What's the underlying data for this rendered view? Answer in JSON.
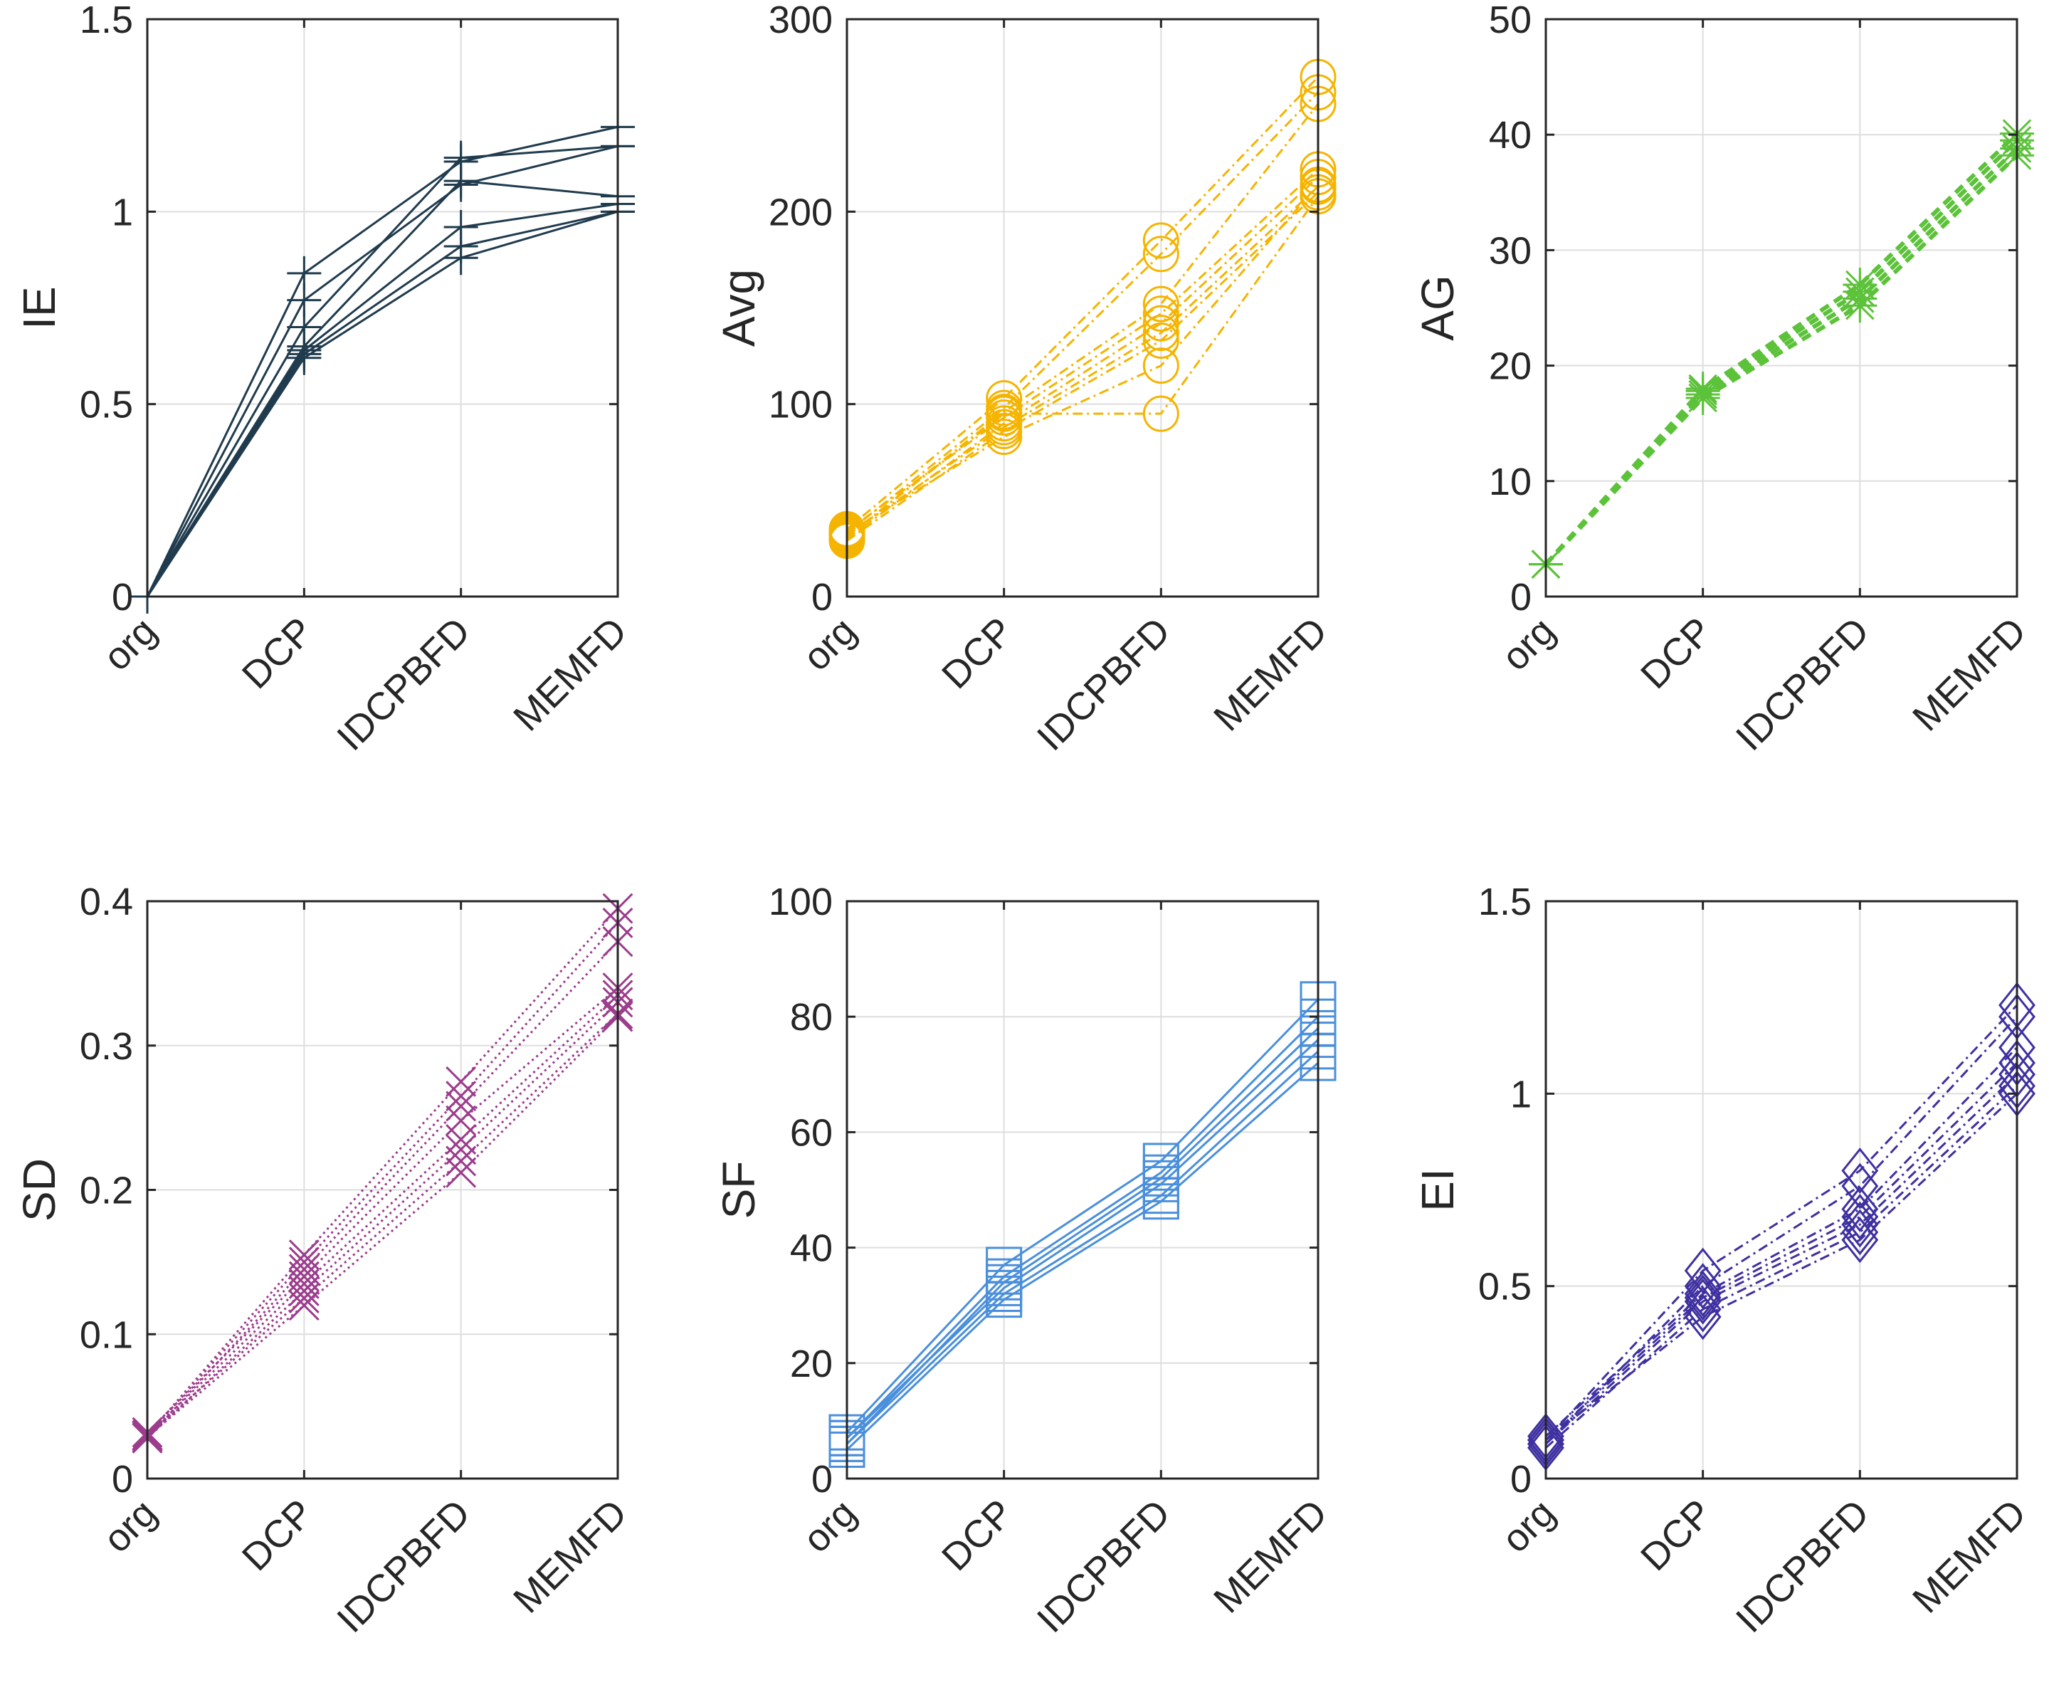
{
  "chart_data": [
    {
      "type": "line",
      "categories": [
        "org",
        "DCP",
        "IDCPBFD",
        "MEMFD"
      ],
      "ylabel": "IE",
      "ylim": [
        0,
        1.5
      ],
      "yticks": [
        "0",
        "0.5",
        "1",
        "1.5"
      ],
      "grid": true,
      "color": "#1f3b4d",
      "marker": "plus",
      "line_style": "solid",
      "series": [
        {
          "values": [
            0,
            0.84,
            1.13,
            1.22
          ]
        },
        {
          "values": [
            0,
            0.77,
            1.07,
            1.17
          ]
        },
        {
          "values": [
            0,
            0.7,
            1.14,
            1.17
          ]
        },
        {
          "values": [
            0,
            0.65,
            1.08,
            1.04
          ]
        },
        {
          "values": [
            0,
            0.64,
            0.96,
            1.02
          ]
        },
        {
          "values": [
            0,
            0.63,
            0.91,
            1.0
          ]
        },
        {
          "values": [
            0,
            0.62,
            0.88,
            1.0
          ]
        }
      ]
    },
    {
      "type": "line",
      "categories": [
        "org",
        "DCP",
        "IDCPBFD",
        "MEMFD"
      ],
      "ylabel": "Avg",
      "ylim": [
        0,
        300
      ],
      "yticks": [
        "0",
        "100",
        "200",
        "300"
      ],
      "grid": true,
      "color": "#f5b400",
      "marker": "circle",
      "line_style": "dashdot",
      "series": [
        {
          "values": [
            35,
            103,
            185,
            270
          ]
        },
        {
          "values": [
            33,
            98,
            178,
            262
          ]
        },
        {
          "values": [
            31,
            96,
            152,
            256
          ]
        },
        {
          "values": [
            34,
            93,
            147,
            222
          ]
        },
        {
          "values": [
            30,
            90,
            142,
            218
          ]
        },
        {
          "values": [
            32,
            88,
            137,
            213
          ]
        },
        {
          "values": [
            29,
            86,
            133,
            210
          ]
        },
        {
          "values": [
            33,
            83,
            120,
            214
          ]
        },
        {
          "values": [
            31,
            95,
            95,
            208
          ]
        }
      ]
    },
    {
      "type": "line",
      "categories": [
        "org",
        "DCP",
        "IDCPBFD",
        "MEMFD"
      ],
      "ylabel": "AG",
      "ylim": [
        0,
        50
      ],
      "yticks": [
        "0",
        "10",
        "20",
        "30",
        "40",
        "50"
      ],
      "grid": true,
      "color": "#5cc23a",
      "marker": "asterisk",
      "line_style": "dashed",
      "series": [
        {
          "values": [
            2.8,
            17.2,
            25.2,
            38.2
          ]
        },
        {
          "values": [
            2.8,
            17.5,
            25.8,
            38.8
          ]
        },
        {
          "values": [
            2.8,
            17.8,
            26.4,
            39.5
          ]
        },
        {
          "values": [
            2.8,
            18.0,
            27.0,
            40.1
          ]
        }
      ]
    },
    {
      "type": "line",
      "categories": [
        "org",
        "DCP",
        "IDCPBFD",
        "MEMFD"
      ],
      "ylabel": "SD",
      "ylim": [
        0,
        0.4
      ],
      "yticks": [
        "0",
        "0.1",
        "0.2",
        "0.3",
        "0.4"
      ],
      "grid": true,
      "color": "#9b3c8c",
      "marker": "x",
      "line_style": "dotted",
      "series": [
        {
          "values": [
            0.03,
            0.155,
            0.275,
            0.395
          ]
        },
        {
          "values": [
            0.03,
            0.15,
            0.265,
            0.385
          ]
        },
        {
          "values": [
            0.028,
            0.145,
            0.258,
            0.372
          ]
        },
        {
          "values": [
            0.032,
            0.14,
            0.248,
            0.34
          ]
        },
        {
          "values": [
            0.03,
            0.135,
            0.235,
            0.335
          ]
        },
        {
          "values": [
            0.028,
            0.13,
            0.228,
            0.33
          ]
        },
        {
          "values": [
            0.03,
            0.125,
            0.22,
            0.322
          ]
        },
        {
          "values": [
            0.029,
            0.12,
            0.212,
            0.32
          ]
        }
      ]
    },
    {
      "type": "line",
      "categories": [
        "org",
        "DCP",
        "IDCPBFD",
        "MEMFD"
      ],
      "ylabel": "SF",
      "ylim": [
        0,
        100
      ],
      "yticks": [
        "0",
        "20",
        "40",
        "60",
        "80",
        "100"
      ],
      "grid": true,
      "color": "#4a8fdc",
      "marker": "square",
      "line_style": "solid",
      "series": [
        {
          "values": [
            8,
            37,
            55,
            83
          ]
        },
        {
          "values": [
            7,
            35,
            53,
            80
          ]
        },
        {
          "values": [
            6,
            34,
            52,
            78
          ]
        },
        {
          "values": [
            7,
            33,
            51,
            76
          ]
        },
        {
          "values": [
            6,
            32,
            49,
            74
          ]
        },
        {
          "values": [
            5,
            31,
            48,
            72
          ]
        }
      ]
    },
    {
      "type": "line",
      "categories": [
        "org",
        "DCP",
        "IDCPBFD",
        "MEMFD"
      ],
      "ylabel": "EI",
      "ylim": [
        0,
        1.5
      ],
      "yticks": [
        "0",
        "0.5",
        "1",
        "1.5"
      ],
      "grid": true,
      "color": "#3e30a0",
      "marker": "diamond",
      "line_style": "dashdot",
      "series": [
        {
          "values": [
            0.1,
            0.54,
            0.8,
            1.23
          ]
        },
        {
          "values": [
            0.09,
            0.5,
            0.76,
            1.2
          ]
        },
        {
          "values": [
            0.11,
            0.48,
            0.7,
            1.12
          ]
        },
        {
          "values": [
            0.1,
            0.47,
            0.68,
            1.08
          ]
        },
        {
          "values": [
            0.09,
            0.46,
            0.66,
            1.05
          ]
        },
        {
          "values": [
            0.08,
            0.44,
            0.64,
            1.02
          ]
        },
        {
          "values": [
            0.1,
            0.42,
            0.62,
            1.0
          ]
        }
      ]
    }
  ]
}
